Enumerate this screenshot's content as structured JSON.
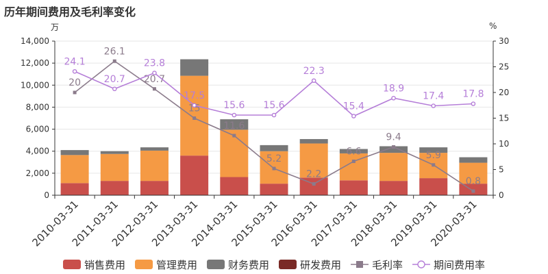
{
  "title": "历年期间费用及毛利率变化",
  "left_unit": "万",
  "right_unit": "%",
  "legend": [
    {
      "label": "销售费用",
      "color": "#c94f4b",
      "kind": "bar"
    },
    {
      "label": "管理费用",
      "color": "#f59a44",
      "kind": "bar"
    },
    {
      "label": "财务费用",
      "color": "#777777",
      "kind": "bar"
    },
    {
      "label": "研发费用",
      "color": "#7a2a26",
      "kind": "bar"
    },
    {
      "label": "毛利率",
      "color": "#8b7b8b",
      "kind": "line-square"
    },
    {
      "label": "期间费用率",
      "color": "#b57ed8",
      "kind": "line-circle"
    }
  ],
  "chart_data": {
    "type": "bar",
    "categories": [
      "2010-03-31",
      "2011-03-31",
      "2012-03-31",
      "2013-03-31",
      "2014-03-31",
      "2015-03-31",
      "2016-03-31",
      "2017-03-31",
      "2018-03-31",
      "2019-03-31",
      "2020-03-31"
    ],
    "y_left": {
      "min": 0,
      "max": 14000,
      "ticks": [
        0,
        2000,
        4000,
        6000,
        8000,
        10000,
        12000,
        14000
      ],
      "tick_labels": [
        "0",
        "2,000",
        "4,000",
        "6,000",
        "8,000",
        "10,000",
        "12,000",
        "14,000"
      ]
    },
    "y_right": {
      "min": 0,
      "max": 30,
      "ticks": [
        0,
        5,
        10,
        15,
        20,
        25,
        30
      ],
      "tick_labels": [
        "0",
        "5",
        "10",
        "15",
        "20",
        "25",
        "30"
      ]
    },
    "stacked": true,
    "series": [
      {
        "name": "销售费用",
        "values": [
          1100,
          1300,
          1300,
          3600,
          1650,
          1050,
          1600,
          1350,
          1300,
          1550,
          1050
        ]
      },
      {
        "name": "管理费用",
        "values": [
          2550,
          2450,
          2750,
          7250,
          4300,
          2950,
          3100,
          2450,
          2550,
          2300,
          1900
        ]
      },
      {
        "name": "财务费用",
        "values": [
          450,
          250,
          300,
          1500,
          950,
          550,
          400,
          400,
          600,
          500,
          500
        ]
      },
      {
        "name": "研发费用",
        "values": [
          0,
          0,
          0,
          0,
          0,
          0,
          0,
          0,
          0,
          0,
          0
        ]
      }
    ],
    "lines": [
      {
        "name": "毛利率",
        "axis": "right",
        "values": [
          20,
          26.1,
          20.7,
          15,
          11.6,
          5.2,
          2.2,
          6.6,
          9.4,
          5.9,
          0.8
        ]
      },
      {
        "name": "期间费用率",
        "axis": "right",
        "values": [
          24.1,
          20.7,
          23.8,
          17.5,
          15.6,
          15.6,
          22.3,
          15.4,
          18.9,
          17.4,
          17.8
        ]
      }
    ]
  }
}
